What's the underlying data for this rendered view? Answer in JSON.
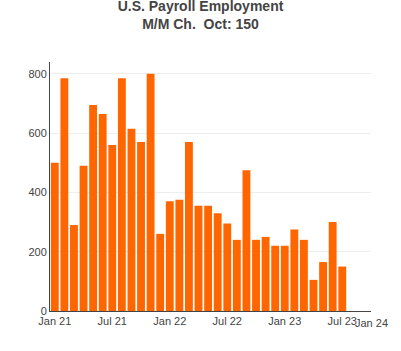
{
  "chart_data": {
    "type": "bar",
    "title": "U.S. Payroll Employment",
    "subtitle": "M/M Ch.  Oct: 150",
    "categories": [
      "Jan 21",
      null,
      null,
      null,
      null,
      null,
      "Jul 21",
      null,
      null,
      null,
      null,
      null,
      "Jan 22",
      null,
      null,
      null,
      null,
      null,
      "Jul 22",
      null,
      null,
      null,
      null,
      null,
      "Jan 23",
      null,
      null,
      null,
      null,
      null,
      "Jul 23"
    ],
    "values": [
      500,
      785,
      290,
      490,
      695,
      665,
      560,
      785,
      615,
      570,
      800,
      260,
      370,
      375,
      570,
      355,
      355,
      330,
      295,
      240,
      475,
      240,
      250,
      220,
      220,
      275,
      240,
      105,
      165,
      300,
      150
    ],
    "color": "#FF6600",
    "ylim": [
      0,
      840
    ],
    "yticks": [
      0,
      200,
      400,
      600,
      800
    ],
    "grid": true,
    "annotations": [
      "Jan 24"
    ]
  }
}
